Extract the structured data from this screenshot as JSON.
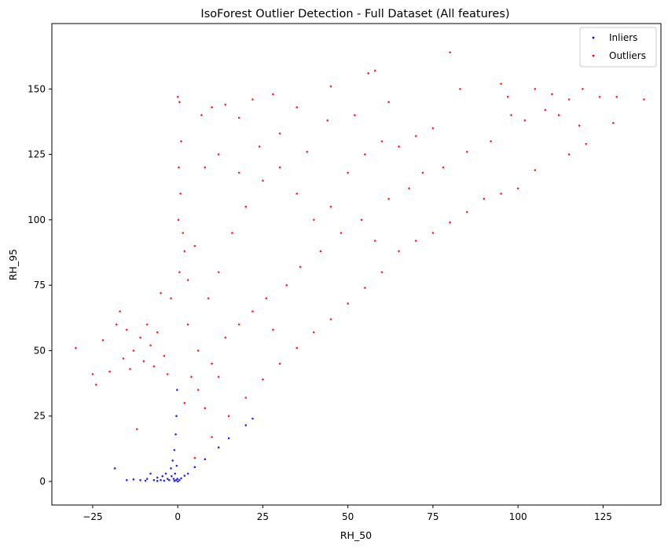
{
  "chart_data": {
    "type": "scatter",
    "title": "IsoForest Outlier Detection - Full Dataset (All features)",
    "xlabel": "RH_50",
    "ylabel": "RH_95",
    "xlim": [
      -37,
      142
    ],
    "ylim": [
      -9,
      175
    ],
    "xticks": [
      -25,
      0,
      25,
      50,
      75,
      100,
      125
    ],
    "yticks": [
      0,
      25,
      50,
      75,
      100,
      125,
      150
    ],
    "grid": false,
    "legend_position": "top-right",
    "series": [
      {
        "name": "Inliers",
        "color": "#0000ff",
        "points": [
          [
            -18.5,
            5
          ],
          [
            -15,
            0.5
          ],
          [
            -13,
            0.8
          ],
          [
            -11,
            0.5
          ],
          [
            -9,
            1
          ],
          [
            -8,
            3
          ],
          [
            -7,
            0.5
          ],
          [
            -6,
            1.5
          ],
          [
            -5,
            0.5
          ],
          [
            -4.5,
            2
          ],
          [
            -4,
            0.3
          ],
          [
            -3.5,
            3
          ],
          [
            -3,
            1
          ],
          [
            -2.5,
            0.5
          ],
          [
            -2,
            5
          ],
          [
            -1.8,
            2
          ],
          [
            -1.5,
            8
          ],
          [
            -1.2,
            1
          ],
          [
            -1,
            12
          ],
          [
            -0.8,
            3
          ],
          [
            -0.6,
            18
          ],
          [
            -0.5,
            0.5
          ],
          [
            -0.4,
            25
          ],
          [
            -0.3,
            6
          ],
          [
            -0.2,
            35
          ],
          [
            -0.1,
            1
          ],
          [
            0,
            0
          ],
          [
            0.5,
            0.5
          ],
          [
            1,
            1.2
          ],
          [
            2,
            2.2
          ],
          [
            3,
            3
          ],
          [
            5,
            5.5
          ],
          [
            8,
            8.5
          ],
          [
            12,
            13
          ],
          [
            15,
            16.5
          ],
          [
            20,
            21.5
          ],
          [
            22,
            24
          ],
          [
            -1,
            0.2
          ],
          [
            -6,
            0.2
          ],
          [
            -9.5,
            0.3
          ]
        ]
      },
      {
        "name": "Outliers",
        "color": "#ff0000",
        "points": [
          [
            -30,
            51
          ],
          [
            -25,
            41
          ],
          [
            -24,
            37
          ],
          [
            -22,
            54
          ],
          [
            -20,
            42
          ],
          [
            -18,
            60
          ],
          [
            -17,
            65
          ],
          [
            -16,
            47
          ],
          [
            -15,
            58
          ],
          [
            -14,
            43
          ],
          [
            -13,
            50
          ],
          [
            -12,
            20
          ],
          [
            -11,
            55
          ],
          [
            -10,
            46
          ],
          [
            -9,
            60
          ],
          [
            -8,
            52
          ],
          [
            -7,
            44
          ],
          [
            -6,
            57
          ],
          [
            -5,
            72
          ],
          [
            -4,
            48
          ],
          [
            -3,
            41
          ],
          [
            -2,
            70
          ],
          [
            0,
            147
          ],
          [
            0.5,
            145
          ],
          [
            1,
            130
          ],
          [
            0.3,
            120
          ],
          [
            0.8,
            110
          ],
          [
            0.2,
            100
          ],
          [
            1.5,
            95
          ],
          [
            2,
            88
          ],
          [
            0.5,
            80
          ],
          [
            3,
            77
          ],
          [
            5,
            90
          ],
          [
            7,
            140
          ],
          [
            10,
            143
          ],
          [
            14,
            144
          ],
          [
            18,
            139
          ],
          [
            22,
            146
          ],
          [
            28,
            148
          ],
          [
            35,
            143
          ],
          [
            45,
            151
          ],
          [
            56,
            156
          ],
          [
            58,
            157
          ],
          [
            62,
            145
          ],
          [
            80,
            164
          ],
          [
            83,
            150
          ],
          [
            95,
            152
          ],
          [
            97,
            147
          ],
          [
            105,
            150
          ],
          [
            110,
            148
          ],
          [
            115,
            146
          ],
          [
            119,
            150
          ],
          [
            124,
            147
          ],
          [
            129,
            147
          ],
          [
            137,
            146
          ],
          [
            128,
            137
          ],
          [
            120,
            129
          ],
          [
            115,
            125
          ],
          [
            105,
            119
          ],
          [
            100,
            112
          ],
          [
            95,
            110
          ],
          [
            90,
            108
          ],
          [
            85,
            103
          ],
          [
            80,
            99
          ],
          [
            75,
            95
          ],
          [
            70,
            92
          ],
          [
            65,
            88
          ],
          [
            60,
            80
          ],
          [
            55,
            74
          ],
          [
            50,
            68
          ],
          [
            45,
            62
          ],
          [
            40,
            57
          ],
          [
            35,
            51
          ],
          [
            30,
            45
          ],
          [
            25,
            39
          ],
          [
            20,
            32
          ],
          [
            15,
            25
          ],
          [
            10,
            17
          ],
          [
            5,
            9
          ],
          [
            3,
            60
          ],
          [
            6,
            50
          ],
          [
            9,
            70
          ],
          [
            12,
            80
          ],
          [
            16,
            95
          ],
          [
            20,
            105
          ],
          [
            25,
            115
          ],
          [
            30,
            120
          ],
          [
            35,
            110
          ],
          [
            40,
            100
          ],
          [
            45,
            105
          ],
          [
            50,
            118
          ],
          [
            55,
            125
          ],
          [
            60,
            130
          ],
          [
            65,
            128
          ],
          [
            70,
            132
          ],
          [
            75,
            135
          ],
          [
            8,
            120
          ],
          [
            12,
            125
          ],
          [
            18,
            118
          ],
          [
            24,
            128
          ],
          [
            30,
            133
          ],
          [
            38,
            126
          ],
          [
            44,
            138
          ],
          [
            52,
            140
          ],
          [
            2,
            30
          ],
          [
            4,
            40
          ],
          [
            6,
            35
          ],
          [
            8,
            28
          ],
          [
            10,
            45
          ],
          [
            12,
            40
          ],
          [
            14,
            55
          ],
          [
            18,
            60
          ],
          [
            22,
            65
          ],
          [
            26,
            70
          ],
          [
            28,
            58
          ],
          [
            32,
            75
          ],
          [
            36,
            82
          ],
          [
            42,
            88
          ],
          [
            48,
            95
          ],
          [
            54,
            100
          ],
          [
            58,
            92
          ],
          [
            62,
            108
          ],
          [
            68,
            112
          ],
          [
            72,
            118
          ],
          [
            78,
            120
          ],
          [
            85,
            126
          ],
          [
            92,
            130
          ],
          [
            98,
            140
          ],
          [
            102,
            138
          ],
          [
            108,
            142
          ],
          [
            112,
            140
          ],
          [
            118,
            136
          ]
        ]
      }
    ]
  }
}
